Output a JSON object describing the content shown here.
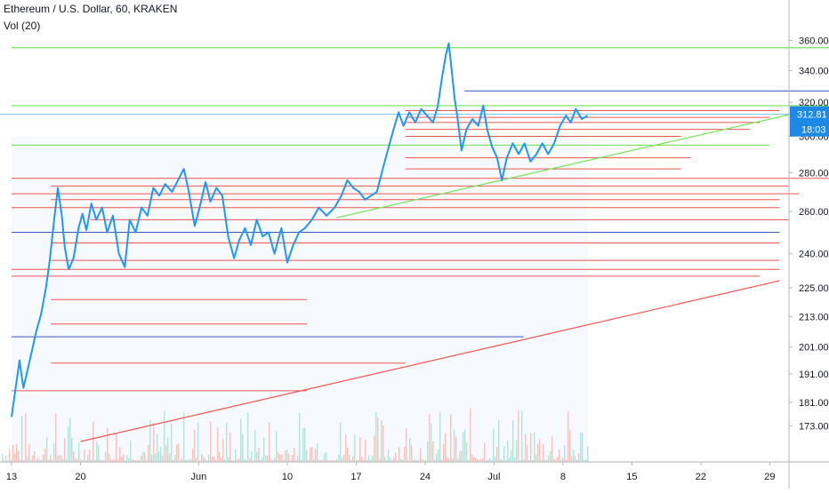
{
  "header": {
    "title": "Ethereum / U.S. Dollar, 60, KRAKEN",
    "volume_label": "Vol (20)"
  },
  "chart_data": {
    "type": "line",
    "y_scale": "log",
    "ylim": [
      168,
      372
    ],
    "y_ticks": [
      360.0,
      340.0,
      320.0,
      300.0,
      280.0,
      260.0,
      240.0,
      225.0,
      213.0,
      201.0,
      191.0,
      181.0,
      173.0
    ],
    "x_ticks": [
      {
        "label": "13",
        "day": 0
      },
      {
        "label": "20",
        "day": 7
      },
      {
        "label": "Jun",
        "day": 19
      },
      {
        "label": "10",
        "day": 28
      },
      {
        "label": "17",
        "day": 35
      },
      {
        "label": "24",
        "day": 42
      },
      {
        "label": "Jul",
        "day": 49
      },
      {
        "label": "8",
        "day": 56
      },
      {
        "label": "15",
        "day": 63
      },
      {
        "label": "22",
        "day": 70
      },
      {
        "label": "29",
        "day": 77
      }
    ],
    "last_price": {
      "value": 312.81,
      "label": "312.81",
      "countdown": "18:03"
    },
    "price_points": [
      [
        0.0,
        176
      ],
      [
        0.5,
        188
      ],
      [
        0.8,
        196
      ],
      [
        1.2,
        186
      ],
      [
        1.6,
        192
      ],
      [
        2.1,
        200
      ],
      [
        2.5,
        207
      ],
      [
        3.0,
        214
      ],
      [
        3.5,
        225
      ],
      [
        3.9,
        238
      ],
      [
        4.3,
        255
      ],
      [
        4.7,
        272
      ],
      [
        5.1,
        258
      ],
      [
        5.4,
        243
      ],
      [
        5.8,
        233
      ],
      [
        6.3,
        238
      ],
      [
        6.8,
        252
      ],
      [
        7.2,
        259
      ],
      [
        7.6,
        251
      ],
      [
        8.1,
        264
      ],
      [
        8.6,
        256
      ],
      [
        9.2,
        262
      ],
      [
        9.7,
        250
      ],
      [
        10.3,
        258
      ],
      [
        10.9,
        240
      ],
      [
        11.5,
        234
      ],
      [
        12.0,
        256
      ],
      [
        12.6,
        250
      ],
      [
        13.2,
        262
      ],
      [
        13.8,
        258
      ],
      [
        14.4,
        272
      ],
      [
        15.0,
        268
      ],
      [
        15.6,
        274
      ],
      [
        16.3,
        270
      ],
      [
        16.9,
        276
      ],
      [
        17.5,
        282
      ],
      [
        18.0,
        270
      ],
      [
        18.6,
        253
      ],
      [
        19.1,
        262
      ],
      [
        19.7,
        275
      ],
      [
        20.2,
        265
      ],
      [
        20.8,
        272
      ],
      [
        21.4,
        268
      ],
      [
        22.0,
        248
      ],
      [
        22.6,
        238
      ],
      [
        23.1,
        246
      ],
      [
        23.7,
        252
      ],
      [
        24.3,
        244
      ],
      [
        24.9,
        256
      ],
      [
        25.5,
        248
      ],
      [
        26.1,
        250
      ],
      [
        26.7,
        240
      ],
      [
        27.4,
        252
      ],
      [
        28.0,
        236
      ],
      [
        28.6,
        244
      ],
      [
        29.2,
        250
      ],
      [
        29.8,
        252
      ],
      [
        30.5,
        256
      ],
      [
        31.2,
        262
      ],
      [
        32.0,
        258
      ],
      [
        32.8,
        262
      ],
      [
        33.5,
        268
      ],
      [
        34.1,
        276
      ],
      [
        34.7,
        272
      ],
      [
        35.3,
        270
      ],
      [
        35.9,
        266
      ],
      [
        36.5,
        268
      ],
      [
        37.1,
        270
      ],
      [
        37.7,
        282
      ],
      [
        38.2,
        292
      ],
      [
        38.8,
        304
      ],
      [
        39.3,
        314
      ],
      [
        39.8,
        306
      ],
      [
        40.4,
        314
      ],
      [
        41.0,
        308
      ],
      [
        41.6,
        316
      ],
      [
        42.2,
        312
      ],
      [
        42.8,
        308
      ],
      [
        43.3,
        318
      ],
      [
        43.7,
        335
      ],
      [
        44.1,
        350
      ],
      [
        44.4,
        358
      ],
      [
        44.7,
        340
      ],
      [
        45.0,
        322
      ],
      [
        45.3,
        310
      ],
      [
        45.7,
        292
      ],
      [
        46.2,
        304
      ],
      [
        46.8,
        310
      ],
      [
        47.4,
        306
      ],
      [
        47.9,
        318
      ],
      [
        48.3,
        304
      ],
      [
        48.8,
        294
      ],
      [
        49.3,
        288
      ],
      [
        49.8,
        276
      ],
      [
        50.3,
        288
      ],
      [
        50.9,
        296
      ],
      [
        51.5,
        290
      ],
      [
        52.1,
        296
      ],
      [
        52.7,
        286
      ],
      [
        53.3,
        290
      ],
      [
        53.9,
        296
      ],
      [
        54.5,
        290
      ],
      [
        55.1,
        296
      ],
      [
        55.7,
        306
      ],
      [
        56.3,
        312
      ],
      [
        56.8,
        308
      ],
      [
        57.3,
        316
      ],
      [
        57.9,
        310
      ],
      [
        58.5,
        312
      ]
    ],
    "levels_green": [
      {
        "y": 355,
        "x0": 0,
        "x1": 84
      },
      {
        "y": 318,
        "x0": 0,
        "x1": 83
      },
      {
        "y": 295,
        "x0": 0,
        "x1": 77
      }
    ],
    "levels_blue": [
      {
        "y": 327,
        "x0": 46,
        "x1": 85
      },
      {
        "y": 250,
        "x0": 0,
        "x1": 78
      },
      {
        "y": 205,
        "x0": 0,
        "x1": 52
      }
    ],
    "levels_red": [
      {
        "y": 315,
        "x0": 40,
        "x1": 78
      },
      {
        "y": 311,
        "x0": 40,
        "x1": 77
      },
      {
        "y": 308,
        "x0": 40,
        "x1": 76
      },
      {
        "y": 304,
        "x0": 40,
        "x1": 75
      },
      {
        "y": 300,
        "x0": 40,
        "x1": 68
      },
      {
        "y": 288,
        "x0": 40,
        "x1": 69
      },
      {
        "y": 282,
        "x0": 40,
        "x1": 68
      },
      {
        "y": 277,
        "x0": 0,
        "x1": 83
      },
      {
        "y": 273,
        "x0": 4,
        "x1": 79
      },
      {
        "y": 269,
        "x0": 0,
        "x1": 80
      },
      {
        "y": 266,
        "x0": 4,
        "x1": 78
      },
      {
        "y": 262,
        "x0": 0,
        "x1": 78
      },
      {
        "y": 256,
        "x0": 8,
        "x1": 79
      },
      {
        "y": 245,
        "x0": 4,
        "x1": 78
      },
      {
        "y": 237,
        "x0": 4,
        "x1": 78
      },
      {
        "y": 233,
        "x0": 0,
        "x1": 78
      },
      {
        "y": 230,
        "x0": 0,
        "x1": 76
      },
      {
        "y": 220,
        "x0": 4,
        "x1": 30
      },
      {
        "y": 210,
        "x0": 4,
        "x1": 30
      },
      {
        "y": 195,
        "x0": 4,
        "x1": 40
      },
      {
        "y": 185,
        "x0": 0,
        "x1": 30
      }
    ],
    "trendlines": [
      {
        "color": "green",
        "from": [
          33,
          257
        ],
        "to": [
          83,
          318
        ]
      },
      {
        "color": "red",
        "from": [
          7,
          168
        ],
        "to": [
          78,
          228
        ]
      }
    ],
    "colors": {
      "price": "#2196f3",
      "green_level": "#76e35c",
      "red_level": "#ef5350",
      "blue_level": "#3a57c9",
      "last_price_line": "#64b5f6",
      "axis_text": "#131722"
    }
  }
}
